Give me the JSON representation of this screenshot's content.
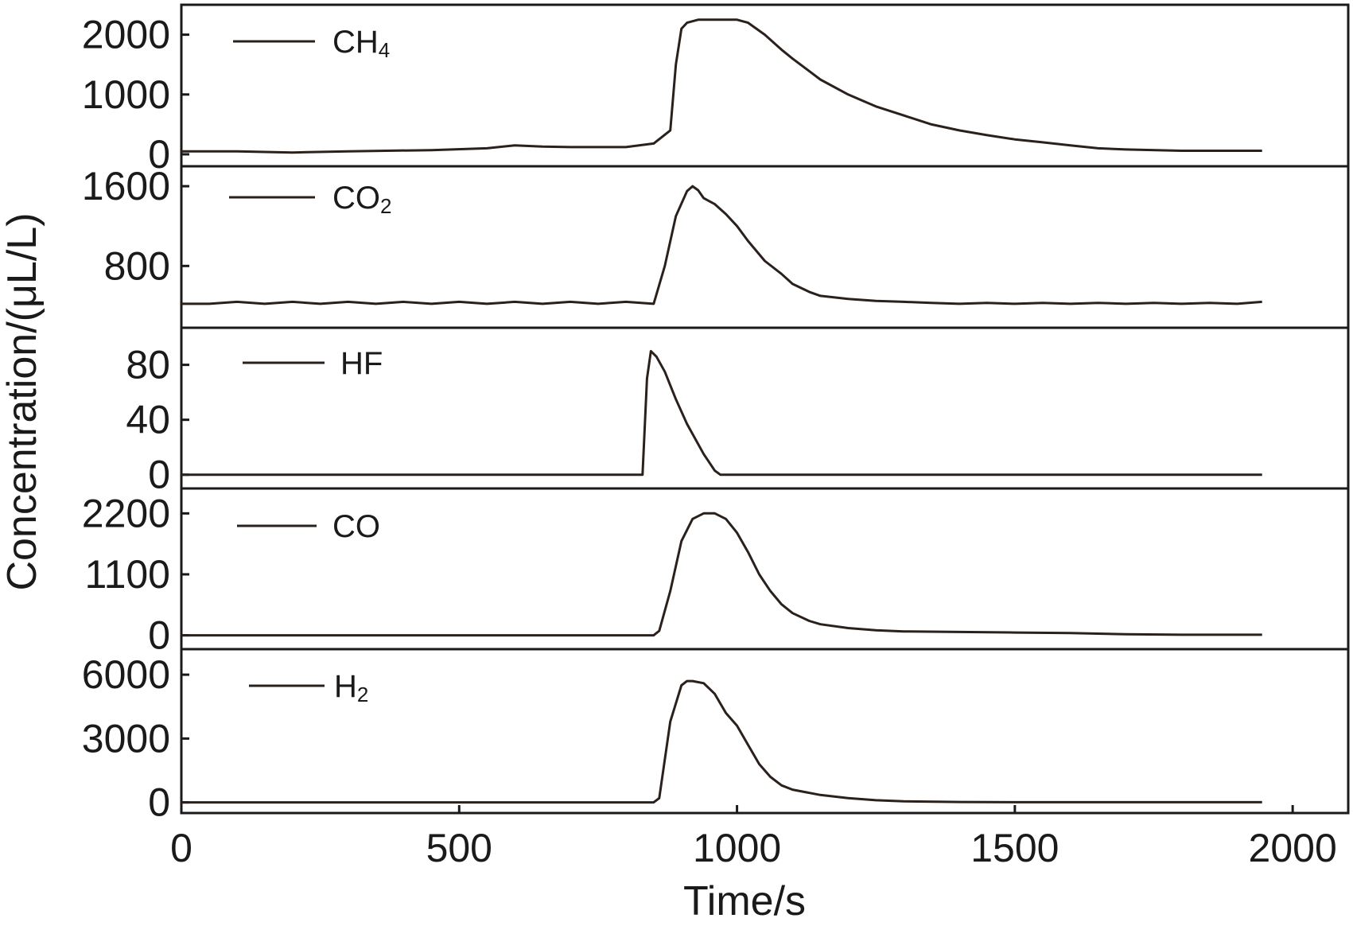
{
  "chart_data": {
    "type": "line",
    "xlabel": "Time/s",
    "ylabel": "Concentration/(μL/L)",
    "xlim": [
      0,
      2100
    ],
    "xticks": [
      0,
      500,
      1000,
      1500,
      2000
    ],
    "xtick_labels": [
      "0",
      "500",
      "1000",
      "1500",
      "2000"
    ],
    "grid": false,
    "legend_placement": "top-left of each panel",
    "line_color": "#2a211c",
    "panels": [
      {
        "name": "CH4",
        "label_main": "CH",
        "label_sub": "4",
        "ylim": [
          -200,
          2500
        ],
        "yticks": [
          0,
          1000,
          2000
        ],
        "ytick_labels": [
          "0",
          "1000",
          "2000"
        ],
        "x": [
          0,
          100,
          200,
          300,
          450,
          550,
          600,
          650,
          700,
          800,
          850,
          880,
          890,
          900,
          910,
          930,
          950,
          1000,
          1020,
          1050,
          1080,
          1100,
          1150,
          1200,
          1250,
          1300,
          1350,
          1400,
          1450,
          1500,
          1550,
          1600,
          1650,
          1700,
          1800,
          1945
        ],
        "values": [
          50,
          50,
          30,
          50,
          70,
          100,
          150,
          130,
          120,
          120,
          180,
          400,
          1500,
          2100,
          2200,
          2250,
          2250,
          2250,
          2200,
          2000,
          1750,
          1600,
          1250,
          1000,
          800,
          650,
          500,
          400,
          320,
          250,
          200,
          150,
          100,
          80,
          60,
          60
        ]
      },
      {
        "name": "CO2",
        "label_main": "CO",
        "label_sub": "2",
        "ylim": [
          180,
          1800
        ],
        "yticks": [
          800,
          1600
        ],
        "ytick_labels": [
          "800",
          "1600"
        ],
        "x": [
          0,
          50,
          100,
          150,
          200,
          250,
          300,
          350,
          400,
          450,
          500,
          550,
          600,
          650,
          700,
          750,
          800,
          850,
          870,
          890,
          910,
          920,
          930,
          940,
          960,
          980,
          1000,
          1020,
          1050,
          1080,
          1100,
          1130,
          1150,
          1200,
          1250,
          1300,
          1350,
          1400,
          1450,
          1500,
          1550,
          1600,
          1650,
          1700,
          1750,
          1800,
          1850,
          1900,
          1945
        ],
        "values": [
          420,
          420,
          440,
          420,
          440,
          420,
          440,
          420,
          440,
          420,
          440,
          420,
          440,
          420,
          440,
          420,
          440,
          420,
          800,
          1300,
          1550,
          1600,
          1560,
          1480,
          1420,
          1320,
          1200,
          1050,
          850,
          720,
          620,
          540,
          500,
          470,
          450,
          440,
          430,
          420,
          430,
          420,
          430,
          420,
          430,
          420,
          430,
          420,
          430,
          420,
          440
        ]
      },
      {
        "name": "HF",
        "label_main": "HF",
        "label_sub": "",
        "ylim": [
          -10,
          107
        ],
        "yticks": [
          0,
          40,
          80
        ],
        "ytick_labels": [
          "0",
          "40",
          "80"
        ],
        "x": [
          0,
          830,
          838,
          845,
          855,
          870,
          890,
          910,
          940,
          960,
          970,
          1945
        ],
        "values": [
          0,
          0,
          70,
          90,
          86,
          75,
          55,
          37,
          15,
          3,
          0,
          0
        ]
      },
      {
        "name": "CO",
        "label_main": "CO",
        "label_sub": "",
        "ylim": [
          -250,
          2650
        ],
        "yticks": [
          0,
          1100,
          2200
        ],
        "ytick_labels": [
          "0",
          "1100",
          "2200"
        ],
        "x": [
          0,
          850,
          860,
          880,
          900,
          920,
          940,
          960,
          980,
          1000,
          1020,
          1040,
          1060,
          1080,
          1100,
          1130,
          1150,
          1200,
          1250,
          1300,
          1400,
          1500,
          1600,
          1700,
          1800,
          1945
        ],
        "values": [
          0,
          0,
          80,
          800,
          1700,
          2100,
          2200,
          2200,
          2100,
          1850,
          1500,
          1100,
          800,
          560,
          400,
          260,
          200,
          130,
          90,
          70,
          60,
          50,
          40,
          20,
          10,
          10
        ]
      },
      {
        "name": "H2",
        "label_main": "H",
        "label_sub": "2",
        "ylim": [
          -500,
          7200
        ],
        "yticks": [
          0,
          3000,
          6000
        ],
        "ytick_labels": [
          "0",
          "3000",
          "6000"
        ],
        "x": [
          0,
          850,
          860,
          880,
          900,
          910,
          920,
          940,
          960,
          980,
          1000,
          1020,
          1040,
          1060,
          1080,
          1100,
          1150,
          1200,
          1250,
          1300,
          1400,
          1500,
          1600,
          1700,
          1800,
          1945
        ],
        "values": [
          0,
          0,
          200,
          3800,
          5500,
          5700,
          5700,
          5600,
          5100,
          4200,
          3600,
          2700,
          1800,
          1200,
          800,
          600,
          350,
          200,
          100,
          50,
          20,
          10,
          10,
          10,
          10,
          10
        ]
      }
    ]
  }
}
